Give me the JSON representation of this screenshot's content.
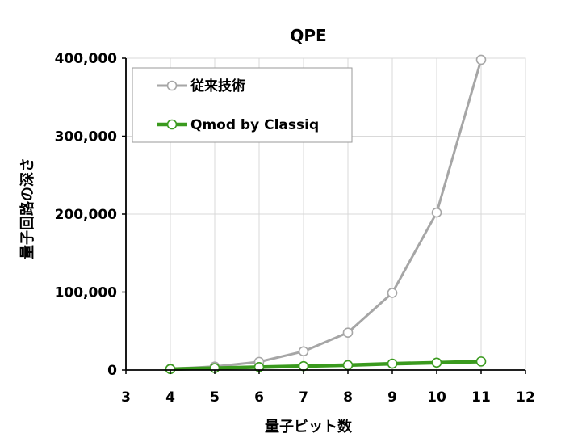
{
  "chart_data": {
    "type": "line",
    "title": "QPE",
    "xlabel": "量子ビット数",
    "ylabel": "量子回路の深さ",
    "xlim": [
      3,
      12
    ],
    "ylim": [
      0,
      400000
    ],
    "x_ticks": [
      "3",
      "4",
      "5",
      "6",
      "7",
      "8",
      "9",
      "10",
      "11",
      "12"
    ],
    "y_ticks": [
      "0",
      "100,000",
      "200,000",
      "300,000",
      "400,000"
    ],
    "x": [
      4,
      5,
      6,
      7,
      8,
      9,
      10,
      11
    ],
    "grid": true,
    "legend_position": "top-left",
    "series": [
      {
        "name": "従来技術",
        "color": "#a6a6a6",
        "values": [
          1500,
          4500,
          10500,
          24000,
          48000,
          99000,
          202000,
          398000
        ]
      },
      {
        "name": "Qmod by Classiq",
        "color": "#3a9a1e",
        "values": [
          1200,
          2500,
          3800,
          5000,
          6300,
          8200,
          9500,
          11000
        ]
      }
    ]
  }
}
